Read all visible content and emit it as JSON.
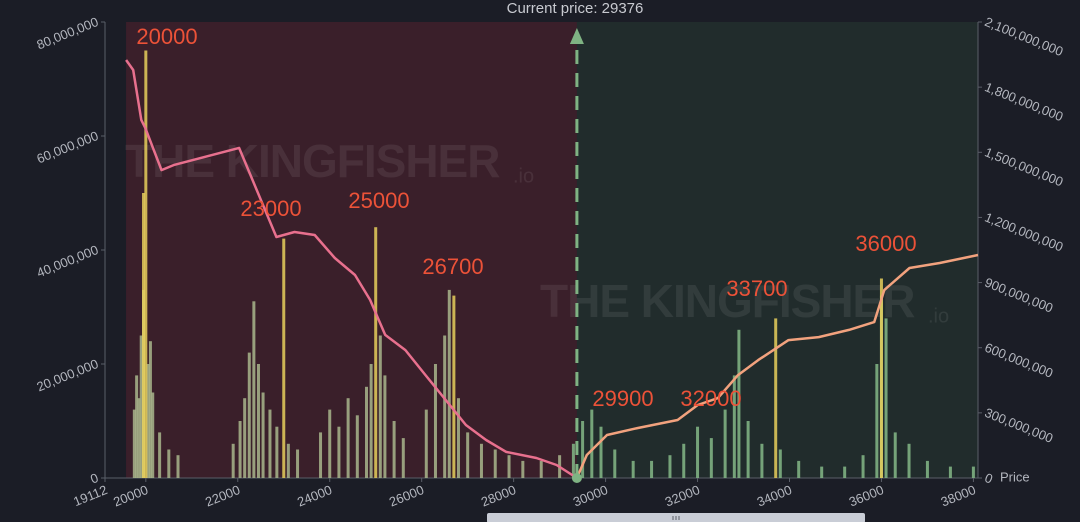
{
  "chart_data": {
    "type": "bar",
    "title": "Current price: 29376",
    "current_price": 29376,
    "xlabel": "Price",
    "watermark": "THE KINGFISHER",
    "watermark_suffix": ".io",
    "xlim": [
      19112,
      38100
    ],
    "xticks": [
      19112,
      20000,
      22000,
      24000,
      26000,
      28000,
      30000,
      32000,
      34000,
      36000,
      38000
    ],
    "ylim": [
      0,
      80000000
    ],
    "yticks": [
      0,
      {
        "value": 20000000,
        "label": "20,000,000"
      },
      {
        "value": 40000000,
        "label": "40,000,000"
      },
      {
        "value": 60000000,
        "label": "60,000,000"
      },
      {
        "value": 80000000,
        "label": "80,000,000"
      }
    ],
    "y2lim": [
      0,
      2100000000
    ],
    "y2ticks": [
      0,
      {
        "value": 300000000,
        "label": "300,000,000"
      },
      {
        "value": 600000000,
        "label": "600,000,000"
      },
      {
        "value": 900000000,
        "label": "900,000,000"
      },
      {
        "value": 1200000000,
        "label": "1,200,000,000"
      },
      {
        "value": 1500000000,
        "label": "1,500,000,000"
      },
      {
        "value": 1800000000,
        "label": "1,800,000,000"
      },
      {
        "value": 2100000000,
        "label": "2,100,000,000"
      }
    ],
    "annotations": [
      20000,
      23000,
      25000,
      26700,
      29900,
      32000,
      33700,
      36000
    ],
    "annotation_color": "#ec5238",
    "series": [
      {
        "type": "bar",
        "color": "#a9b68c",
        "x": [
          19750,
          19800,
          19850,
          19900,
          19950,
          20050,
          20100,
          20150,
          20300,
          20500,
          20700,
          21900,
          22050,
          22150,
          22250,
          22350,
          22450,
          22550,
          22700,
          22850,
          23100,
          23300,
          23800,
          24000,
          24200,
          24400,
          24600,
          24800,
          24900,
          25100,
          25200,
          25400,
          25600,
          26100,
          26300,
          26500,
          26600,
          26800,
          27000,
          27300,
          27600,
          27900,
          28200,
          28600,
          29000
        ],
        "values": [
          12000000,
          18000000,
          14000000,
          25000000,
          33000000,
          20000000,
          24000000,
          15000000,
          8000000,
          5000000,
          4000000,
          6000000,
          10000000,
          14000000,
          22000000,
          31000000,
          20000000,
          15000000,
          12000000,
          9000000,
          6000000,
          5000000,
          8000000,
          12000000,
          9000000,
          14000000,
          11000000,
          16000000,
          20000000,
          25000000,
          18000000,
          10000000,
          7000000,
          12000000,
          20000000,
          25000000,
          33000000,
          14000000,
          8000000,
          6000000,
          5000000,
          4000000,
          3000000,
          3000000,
          4000000
        ]
      },
      {
        "type": "bar",
        "color": "#84b887",
        "x": [
          29300,
          29500,
          29700,
          29900,
          30200,
          30600,
          31000,
          31400,
          31700,
          32000,
          32300,
          32600,
          32800,
          32900,
          33100,
          33400,
          33800,
          34200,
          34700,
          35200,
          35600,
          35900,
          36000,
          36100,
          36300,
          36600,
          37000,
          37500,
          38000
        ],
        "values": [
          6000000,
          10000000,
          12000000,
          9000000,
          5000000,
          3000000,
          3000000,
          4000000,
          6000000,
          9000000,
          7000000,
          12000000,
          18000000,
          26000000,
          10000000,
          6000000,
          5000000,
          3000000,
          2000000,
          2000000,
          4000000,
          20000000,
          32000000,
          28000000,
          8000000,
          6000000,
          3000000,
          2000000,
          2000000
        ]
      },
      {
        "type": "bar",
        "color": "#e6cf5c",
        "x": [
          19950,
          20000,
          23000,
          25000,
          26700,
          33700,
          36000
        ],
        "values": [
          50000000,
          75000000,
          42000000,
          44000000,
          32000000,
          28000000,
          35000000
        ]
      },
      {
        "type": "line",
        "axis": "y2",
        "color": "#e8708e",
        "fill": "rgba(140,40,55,0.28)",
        "x": [
          19570,
          19726,
          19901,
          19989,
          20340,
          20603,
          22028,
          22839,
          23234,
          23672,
          24111,
          24550,
          24879,
          25207,
          25646,
          26084,
          26523,
          26962,
          27400,
          27839,
          28496,
          28935,
          29376
        ],
        "values": [
          1925000000,
          1879000000,
          1649000000,
          1612000000,
          1418000000,
          1441000000,
          1520000000,
          1110000000,
          1133000000,
          1119000000,
          1013000000,
          935000000,
          820000000,
          659000000,
          589000000,
          474000000,
          359000000,
          244000000,
          175000000,
          120000000,
          92000000,
          60000000,
          0
        ]
      },
      {
        "type": "line",
        "axis": "y2",
        "color": "#f2a27e",
        "fill": "rgba(50,90,60,0.26)",
        "x": [
          29376,
          29592,
          30031,
          30689,
          31566,
          32004,
          32443,
          32881,
          33320,
          33978,
          34636,
          35294,
          35842,
          36061,
          36610,
          37268,
          38100
        ],
        "values": [
          0,
          106000000,
          198000000,
          230000000,
          267000000,
          336000000,
          368000000,
          474000000,
          543000000,
          635000000,
          649000000,
          682000000,
          718000000,
          866000000,
          967000000,
          990000000,
          1027000000
        ]
      }
    ]
  }
}
